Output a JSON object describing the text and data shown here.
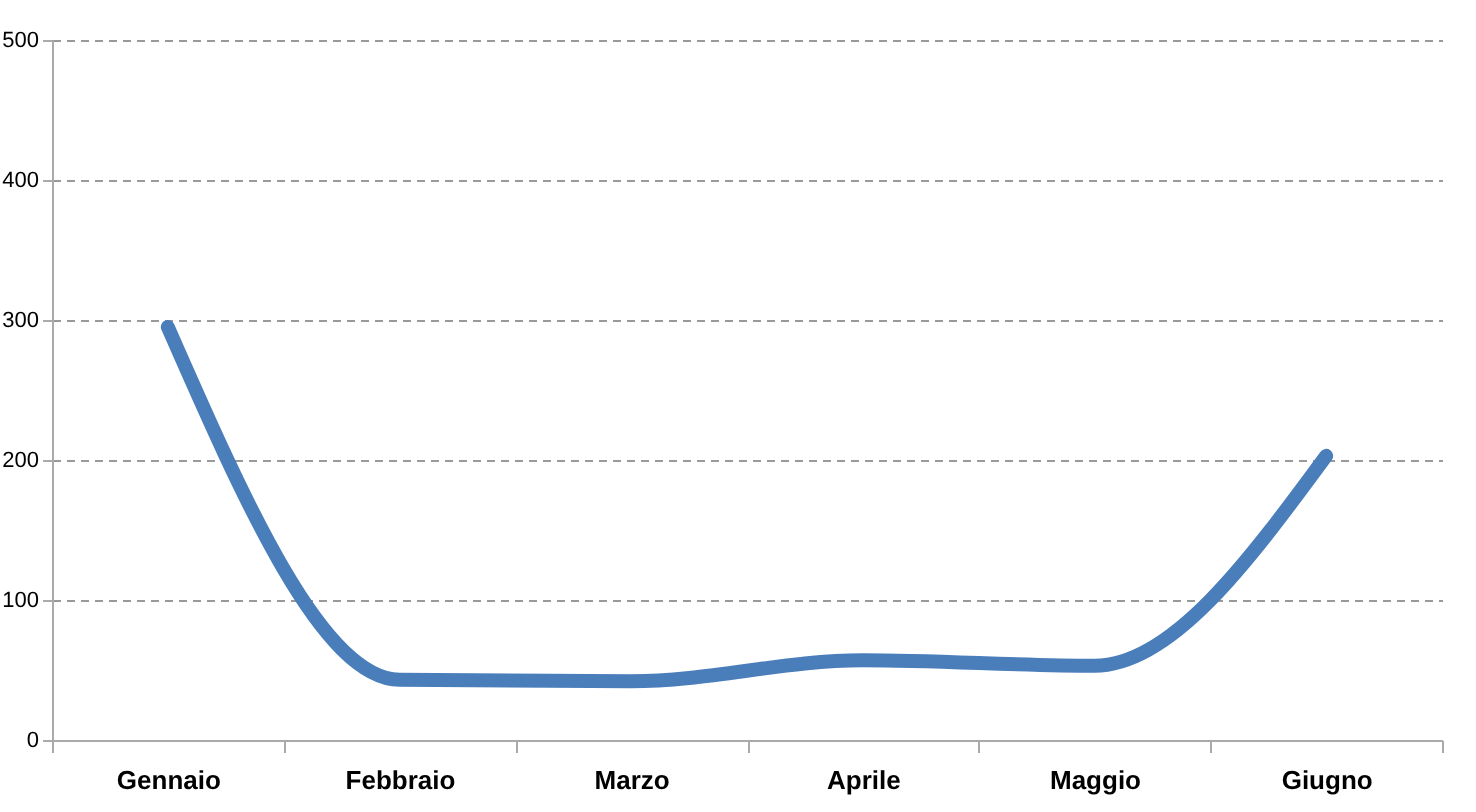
{
  "chart_data": {
    "type": "line",
    "categories": [
      "Gennaio",
      "Febbraio",
      "Marzo",
      "Aprile",
      "Maggio",
      "Giugno"
    ],
    "series": [
      {
        "color": "#4a7ebb",
        "values": [
          295,
          43,
          42,
          57,
          53,
          203
        ]
      }
    ],
    "ylim": [
      0,
      500
    ],
    "yticks": [
      0,
      100,
      200,
      300,
      400,
      500
    ],
    "grid": "y",
    "marker": "none",
    "line_style": "solid"
  }
}
